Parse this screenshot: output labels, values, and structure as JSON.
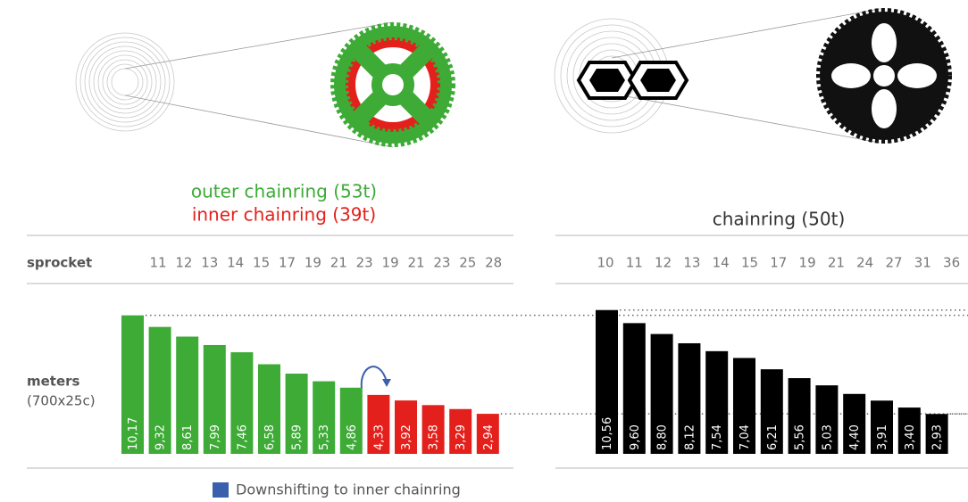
{
  "chart_data": [
    {
      "type": "bar",
      "x_label": "sprocket",
      "y_label": "meters",
      "y_sublabel": "(700x25c)",
      "categories": [
        "11",
        "12",
        "13",
        "14",
        "15",
        "17",
        "19",
        "21",
        "23",
        "19",
        "21",
        "23",
        "25",
        "28"
      ],
      "series": [
        {
          "name": "outer chainring (53t)",
          "color": "#3dab36",
          "values": [
            10.17,
            9.32,
            8.61,
            7.99,
            7.46,
            6.58,
            5.89,
            5.33,
            4.86,
            null,
            null,
            null,
            null,
            null
          ],
          "value_labels": [
            "10,17",
            "9,32",
            "8,61",
            "7,99",
            "7,46",
            "6,58",
            "5,89",
            "5,33",
            "4,86",
            null,
            null,
            null,
            null,
            null
          ]
        },
        {
          "name": "inner chainring (39t)",
          "color": "#e3201b",
          "values": [
            null,
            null,
            null,
            null,
            null,
            null,
            null,
            null,
            null,
            4.33,
            3.92,
            3.58,
            3.29,
            2.94
          ],
          "value_labels": [
            null,
            null,
            null,
            null,
            null,
            null,
            null,
            null,
            null,
            "4,33",
            "3,92",
            "3,58",
            "3,29",
            "2,94"
          ]
        }
      ],
      "annotation": {
        "text": "Downshifting to inner chainring",
        "color": "#3a5fad"
      },
      "ylim": [
        0,
        11
      ]
    },
    {
      "type": "bar",
      "title": "chainring (50t)",
      "categories": [
        "10",
        "11",
        "12",
        "13",
        "14",
        "15",
        "17",
        "19",
        "21",
        "24",
        "27",
        "31",
        "36"
      ],
      "values": [
        10.56,
        9.6,
        8.8,
        8.12,
        7.54,
        7.04,
        6.21,
        5.56,
        5.03,
        4.4,
        3.91,
        3.4,
        2.93
      ],
      "value_labels": [
        "10,56",
        "9,60",
        "8,80",
        "8,12",
        "7,54",
        "7,04",
        "6,21",
        "5,56",
        "5,03",
        "4,40",
        "3,91",
        "3,40",
        "2,93"
      ],
      "color": "#000000",
      "ylim": [
        0,
        11
      ]
    }
  ]
}
